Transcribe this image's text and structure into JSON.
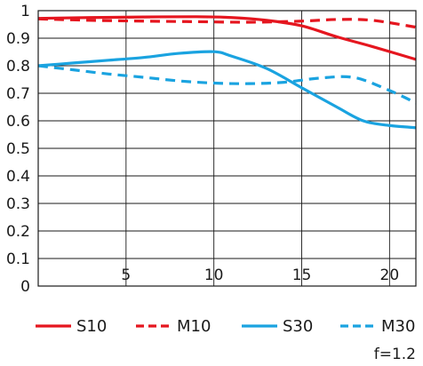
{
  "chart_data": {
    "type": "line",
    "xlim": [
      0,
      21.5
    ],
    "ylim": [
      0,
      1
    ],
    "xticks": [
      5,
      10,
      15,
      20
    ],
    "yticks": [
      0,
      0.1,
      0.2,
      0.3,
      0.4,
      0.5,
      0.6,
      0.7,
      0.8,
      0.9,
      1
    ],
    "ytick_labels": [
      "0",
      "0.1",
      "0.2",
      "0.3",
      "0.4",
      "0.5",
      "0.6",
      "0.7",
      "0.8",
      "0.9",
      "1"
    ],
    "xtick_labels": [
      "5",
      "10",
      "15",
      "20"
    ],
    "grid": true,
    "legend_position": "bottom",
    "series": [
      {
        "name": "S10",
        "color": "#e5161f",
        "dash": "solid",
        "x": [
          0,
          3,
          6,
          9,
          11,
          13,
          15,
          17,
          19,
          21.5
        ],
        "y": [
          0.972,
          0.975,
          0.977,
          0.978,
          0.975,
          0.965,
          0.945,
          0.905,
          0.87,
          0.823
        ]
      },
      {
        "name": "M10",
        "color": "#e5161f",
        "dash": "dashed",
        "x": [
          0,
          3,
          6,
          9,
          12,
          15,
          17,
          19,
          21.5
        ],
        "y": [
          0.97,
          0.965,
          0.962,
          0.96,
          0.958,
          0.962,
          0.968,
          0.965,
          0.94
        ]
      },
      {
        "name": "S30",
        "color": "#1aa3e0",
        "dash": "solid",
        "x": [
          0,
          2,
          4,
          6,
          8,
          10,
          11,
          13,
          15,
          17,
          18.5,
          20,
          21.5
        ],
        "y": [
          0.8,
          0.81,
          0.82,
          0.83,
          0.845,
          0.851,
          0.835,
          0.79,
          0.72,
          0.65,
          0.6,
          0.583,
          0.575
        ]
      },
      {
        "name": "M30",
        "color": "#1aa3e0",
        "dash": "dashed",
        "x": [
          0,
          2,
          4,
          6,
          8,
          10,
          12,
          14,
          16,
          18,
          20,
          21.5
        ],
        "y": [
          0.8,
          0.785,
          0.77,
          0.758,
          0.745,
          0.737,
          0.735,
          0.74,
          0.755,
          0.757,
          0.71,
          0.665
        ]
      }
    ],
    "footnote": "f=1.2"
  }
}
